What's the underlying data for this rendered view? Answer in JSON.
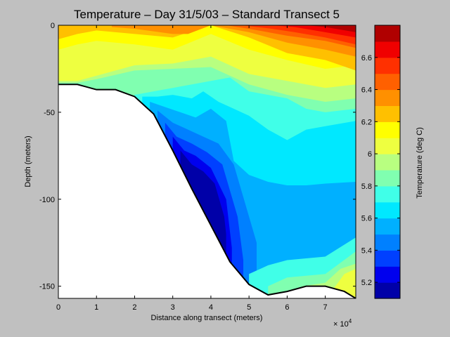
{
  "chart_data": {
    "type": "heatmap",
    "title": "Temperature – Day 31/5/03 – Standard Transect 5",
    "xlabel": "Distance along transect (meters)",
    "ylabel": "Depth (meters)",
    "x_exponent_label": "× 10",
    "x_exponent": "4",
    "xlim": [
      0,
      78000
    ],
    "ylim": [
      -157,
      0
    ],
    "x_ticks": [
      0,
      10000,
      20000,
      30000,
      40000,
      50000,
      60000,
      70000
    ],
    "x_tick_labels": [
      "0",
      "1",
      "2",
      "3",
      "4",
      "5",
      "6",
      "7"
    ],
    "y_ticks": [
      0,
      -50,
      -100,
      -150
    ],
    "y_tick_labels": [
      "0",
      "-50",
      "-100",
      "-150"
    ],
    "bathymetry": {
      "x": [
        0,
        5000,
        10000,
        15000,
        20000,
        25000,
        30000,
        35000,
        40000,
        45000,
        50000,
        55000,
        60000,
        65000,
        70000,
        75000,
        78000
      ],
      "depth": [
        -34,
        -34,
        -37,
        -37,
        -41,
        -51,
        -72,
        -94,
        -115,
        -136,
        -149,
        -155,
        -153,
        -150,
        -150,
        -153,
        -157
      ]
    },
    "colorbar": {
      "label": "Temperature (deg C)",
      "min": 5.1,
      "max": 6.8,
      "ticks": [
        5.2,
        5.4,
        5.6,
        5.8,
        6.0,
        6.2,
        6.4,
        6.6
      ],
      "tick_labels": [
        "5.2",
        "5.4",
        "5.6",
        "5.8",
        "6",
        "6.2",
        "6.4",
        "6.6"
      ],
      "levels": [
        {
          "from": 5.1,
          "to": 5.2,
          "color": "#0000a8"
        },
        {
          "from": 5.2,
          "to": 5.3,
          "color": "#0000ee"
        },
        {
          "from": 5.3,
          "to": 5.4,
          "color": "#0040ff"
        },
        {
          "from": 5.4,
          "to": 5.5,
          "color": "#0080ff"
        },
        {
          "from": 5.5,
          "to": 5.6,
          "color": "#00b0ff"
        },
        {
          "from": 5.6,
          "to": 5.7,
          "color": "#00e8ff"
        },
        {
          "from": 5.7,
          "to": 5.8,
          "color": "#40ffe8"
        },
        {
          "from": 5.8,
          "to": 5.9,
          "color": "#80ffb0"
        },
        {
          "from": 5.9,
          "to": 6.0,
          "color": "#b8ff80"
        },
        {
          "from": 6.0,
          "to": 6.1,
          "color": "#eeff40"
        },
        {
          "from": 6.1,
          "to": 6.2,
          "color": "#ffff00"
        },
        {
          "from": 6.2,
          "to": 6.3,
          "color": "#ffc000"
        },
        {
          "from": 6.3,
          "to": 6.4,
          "color": "#ff9000"
        },
        {
          "from": 6.4,
          "to": 6.5,
          "color": "#ff6000"
        },
        {
          "from": 6.5,
          "to": 6.6,
          "color": "#ff3000"
        },
        {
          "from": 6.6,
          "to": 6.7,
          "color": "#f00000"
        },
        {
          "from": 6.7,
          "to": 6.8,
          "color": "#b00000"
        }
      ]
    },
    "contours": [
      {
        "level": 5.9,
        "x": [
          0,
          5000,
          10000,
          20000,
          30000,
          40000,
          50000,
          60000,
          70000,
          78000
        ],
        "depth": [
          -33,
          -33,
          -31,
          -26,
          -25,
          -24,
          -34,
          -40,
          -44,
          -42
        ]
      },
      {
        "level": 6.0,
        "x": [
          0,
          5000,
          10000,
          20000,
          30000,
          40000,
          50000,
          60000,
          70000,
          78000
        ],
        "depth": [
          -32,
          -32,
          -29,
          -23,
          -22,
          -18,
          -28,
          -32,
          -36,
          -34
        ]
      },
      {
        "level": 6.1,
        "x": [
          0,
          5000,
          10000,
          20000,
          30000,
          40000,
          50000,
          60000,
          70000,
          78000
        ],
        "depth": [
          -14,
          -11,
          -9,
          -11,
          -14,
          -5,
          -14,
          -20,
          -25,
          -23
        ]
      },
      {
        "level": 6.2,
        "x": [
          0,
          5000,
          10000,
          20000,
          30000,
          40000,
          50000,
          60000,
          70000,
          78000
        ],
        "depth": [
          -8,
          -5,
          -3,
          -5,
          -7,
          0,
          -7,
          -16,
          -20,
          -26
        ]
      },
      {
        "level": 6.3,
        "x": [
          14000,
          20000,
          30000,
          34000,
          40000,
          50000,
          60000,
          70000,
          78000
        ],
        "depth": [
          -1,
          -2,
          -5,
          -5,
          0,
          -4,
          -10,
          -14,
          -18
        ]
      },
      {
        "level": 6.4,
        "x": [
          20000,
          30000,
          40000,
          44000,
          50000,
          60000,
          70000,
          78000
        ],
        "depth": [
          0,
          0,
          0,
          0,
          -2,
          -6,
          -9,
          -13
        ]
      },
      {
        "level": 6.5,
        "x": [
          48000,
          56000,
          62000,
          70000,
          78000
        ],
        "depth": [
          0,
          -2,
          -4,
          -7,
          -11
        ]
      },
      {
        "level": 6.6,
        "x": [
          56000,
          62000,
          70000,
          78000
        ],
        "depth": [
          0,
          -1,
          -4,
          -7
        ]
      },
      {
        "level": 6.7,
        "x": [
          65000,
          70000,
          78000
        ],
        "depth": [
          0,
          -1,
          -4
        ]
      }
    ],
    "lower_layers": [
      {
        "level": 5.8,
        "x": [
          20000,
          25000,
          30000,
          35000,
          40000,
          45000,
          50000,
          55000,
          60000,
          65000,
          70000,
          78000
        ],
        "depth": [
          -40,
          -38,
          -36,
          -34,
          -32,
          -30,
          -38,
          -40,
          -42,
          -48,
          -50,
          -48
        ]
      },
      {
        "level": 5.7,
        "x": [
          22000,
          26000,
          30000,
          35000,
          38000,
          42000,
          46000,
          50000,
          55000,
          60000,
          65000,
          70000,
          78000
        ],
        "depth": [
          -41,
          -41,
          -40,
          -42,
          -38,
          -44,
          -48,
          -52,
          -60,
          -66,
          -60,
          -58,
          -55
        ]
      },
      {
        "level": 5.6,
        "x": [
          24000,
          28000,
          32000,
          36000,
          40000,
          44000,
          46000,
          50000,
          55000,
          60000,
          65000,
          70000,
          78000
        ],
        "depth": [
          -44,
          -47,
          -50,
          -53,
          -48,
          -55,
          -78,
          -86,
          -90,
          -92,
          -92,
          -91,
          -90
        ]
      },
      {
        "level": 5.5,
        "x": [
          26000,
          30000,
          34000,
          38000,
          42000,
          46000,
          50000,
          52000
        ],
        "depth": [
          -49,
          -56,
          -60,
          -64,
          -68,
          -80,
          -110,
          -125
        ]
      },
      {
        "level": 5.4,
        "x": [
          28000,
          31000,
          35000,
          39000,
          43000,
          47000,
          48500
        ],
        "depth": [
          -56,
          -64,
          -68,
          -73,
          -80,
          -110,
          -135
        ]
      },
      {
        "level": 5.3,
        "x": [
          30000,
          33000,
          36000,
          40000,
          44000,
          45500
        ],
        "depth": [
          -64,
          -72,
          -75,
          -82,
          -100,
          -128
        ]
      },
      {
        "level": 5.2,
        "x": [
          32000,
          35000,
          38000,
          41000,
          43500,
          44000
        ],
        "depth": [
          -72,
          -80,
          -84,
          -91,
          -110,
          -120
        ]
      }
    ],
    "bottom_warm_layers": [
      {
        "level": 5.7,
        "x": [
          50000,
          55000,
          60000,
          65000,
          70000,
          78000
        ],
        "depth": [
          -143,
          -138,
          -135,
          -134,
          -133,
          -122
        ]
      },
      {
        "level": 5.8,
        "x": [
          55000,
          60000,
          65000,
          70000,
          78000
        ],
        "depth": [
          -150,
          -145,
          -144,
          -143,
          -130
        ]
      },
      {
        "level": 5.9,
        "x": [
          64000,
          70000,
          74000,
          78000
        ],
        "depth": [
          -150,
          -148,
          -140,
          -137
        ]
      },
      {
        "level": 6.0,
        "x": [
          72000,
          75000,
          78000
        ],
        "depth": [
          -152,
          -143,
          -140
        ]
      }
    ]
  }
}
